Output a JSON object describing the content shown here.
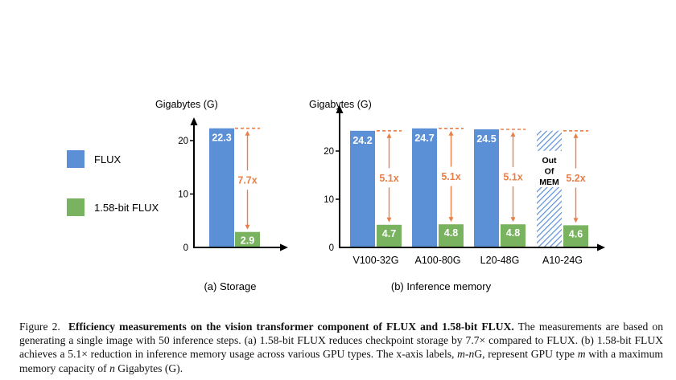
{
  "legend": {
    "items": [
      {
        "label": "FLUX",
        "color": "#5b8fd6"
      },
      {
        "label": "1.58-bit FLUX",
        "color": "#79b35f"
      }
    ]
  },
  "colors": {
    "flux": "#5b8fd6",
    "flux158": "#79b35f",
    "annotation": "#e8804a",
    "axis": "#000000"
  },
  "chart_data": [
    {
      "type": "bar",
      "title": "(a) Storage",
      "ylabel": "Gigabytes (G)",
      "xlabel": "",
      "ylim": [
        0,
        24.5
      ],
      "yticks": [
        0,
        10,
        20
      ],
      "categories": [
        ""
      ],
      "series": [
        {
          "name": "FLUX",
          "values": [
            22.3
          ],
          "labels": [
            "22.3"
          ]
        },
        {
          "name": "1.58-bit FLUX",
          "values": [
            2.9
          ],
          "labels": [
            "2.9"
          ]
        }
      ],
      "annotations": [
        {
          "category_index": 0,
          "text": "7.7x"
        }
      ]
    },
    {
      "type": "bar",
      "title": "(b) Inference memory",
      "ylabel": "Gigabytes (G)",
      "xlabel": "",
      "ylim": [
        0,
        27
      ],
      "yticks": [
        0,
        10,
        20
      ],
      "categories": [
        "V100-32G",
        "A100-80G",
        "L20-48G",
        "A10-24G"
      ],
      "series": [
        {
          "name": "FLUX",
          "values": [
            24.2,
            24.7,
            24.5,
            null
          ],
          "labels": [
            "24.2",
            "24.7",
            "24.5",
            ""
          ]
        },
        {
          "name": "1.58-bit FLUX",
          "values": [
            4.7,
            4.8,
            4.8,
            4.6
          ],
          "labels": [
            "4.7",
            "4.8",
            "4.8",
            "4.6"
          ]
        }
      ],
      "out_of_memory": {
        "category_index": 3,
        "label_lines": [
          "Out",
          "Of",
          "MEM"
        ]
      },
      "annotations": [
        {
          "category_index": 0,
          "text": "5.1x"
        },
        {
          "category_index": 1,
          "text": "5.1x"
        },
        {
          "category_index": 2,
          "text": "5.1x"
        },
        {
          "category_index": 3,
          "text": "5.2x"
        }
      ]
    }
  ],
  "caption": {
    "figure_label": "Figure 2.",
    "bold_title": "Efficiency measurements on the vision transformer component of FLUX and 1.58-bit FLUX.",
    "text_1": "The measurements are based on generating a single image with 50 inference steps.  (a) 1.58-bit FLUX reduces checkpoint storage by 7.7× compared to FLUX. (b) 1.58-bit FLUX achieves a 5.1× reduction in inference memory usage across various GPU types. The x-axis labels, ",
    "var_m": "m",
    "dash": "-",
    "var_n": "n",
    "text_2": "G, represent GPU type ",
    "var_m2": "m",
    "text_3": " with a maximum memory capacity of ",
    "var_n2": "n",
    "text_4": " Gigabytes (G)."
  }
}
